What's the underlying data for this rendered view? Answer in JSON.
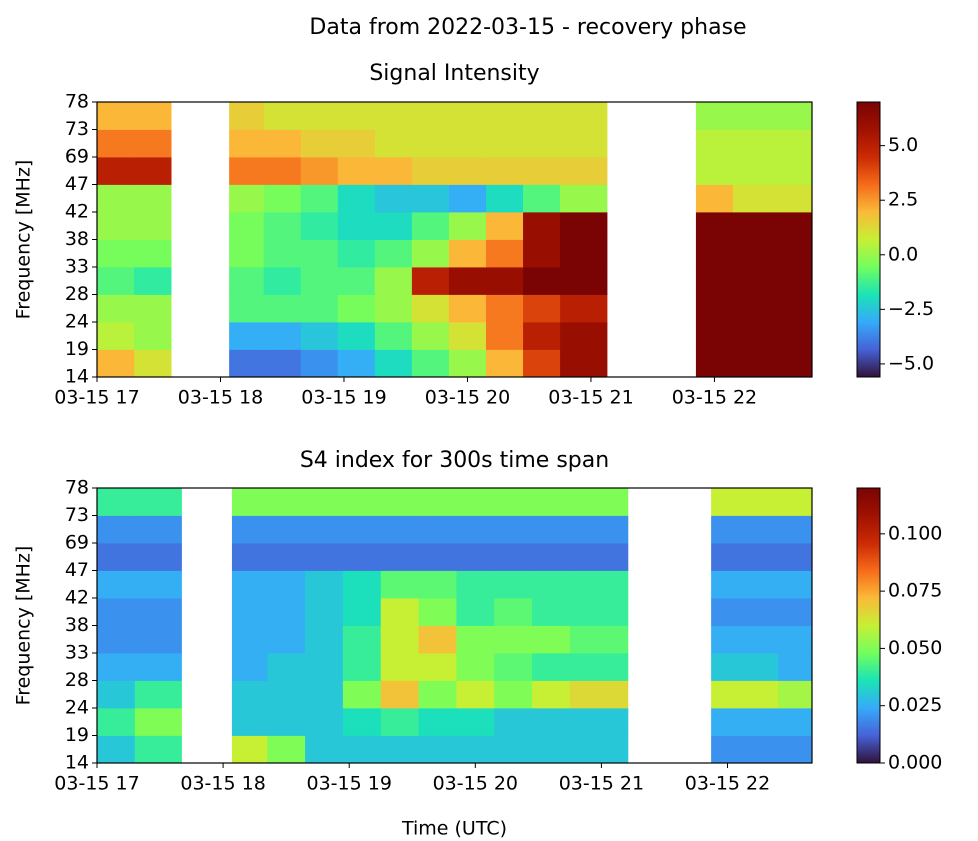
{
  "title": "Data from 2022-03-15 - recovery phase",
  "chart_data": [
    {
      "type": "heatmap",
      "title": "Signal Intensity",
      "y_label": "Frequency [MHz]",
      "x_edges": [
        17,
        17.3,
        17.6,
        18.07,
        18.35,
        18.65,
        18.95,
        19.25,
        19.55,
        19.85,
        20.15,
        20.45,
        20.75,
        21.13,
        21.85,
        22.15,
        22.45,
        22.79
      ],
      "y_edges": [
        14,
        19,
        24,
        28,
        33,
        38,
        42,
        47,
        69,
        73,
        78
      ],
      "values": [
        [
          2,
          1,
          null,
          -4,
          -4,
          -3.5,
          -3,
          -2,
          -1,
          0,
          2,
          4,
          6,
          null,
          7,
          7,
          7
        ],
        [
          0.5,
          0,
          null,
          -3,
          -3,
          -2.5,
          -2,
          -1,
          0,
          1,
          3,
          5,
          6,
          null,
          7,
          7,
          7
        ],
        [
          0,
          0,
          null,
          -1,
          -1,
          -1,
          -0.5,
          0,
          1,
          2,
          3,
          4,
          5,
          null,
          7,
          7,
          7
        ],
        [
          -1,
          -1.5,
          null,
          -1,
          -1.5,
          -1,
          -1,
          0,
          5,
          6,
          6,
          7,
          7,
          null,
          7,
          7,
          7
        ],
        [
          -0.5,
          -0.5,
          null,
          -0.5,
          -1,
          -1,
          -1.5,
          -1,
          0,
          2,
          3,
          6,
          7,
          null,
          7,
          7,
          7
        ],
        [
          0,
          0,
          null,
          -0.5,
          -1,
          -1.5,
          -2,
          -2,
          -1,
          0,
          2,
          6,
          7,
          null,
          7,
          7,
          7
        ],
        [
          0,
          0,
          null,
          0,
          -0.5,
          -1,
          -2,
          -2.5,
          -2.5,
          -3,
          -2,
          -1,
          0,
          null,
          2,
          1,
          1
        ],
        [
          5,
          5,
          null,
          3,
          3,
          2.5,
          2,
          2,
          1.5,
          1.5,
          1.5,
          1.5,
          1.5,
          null,
          0.5,
          0.5,
          0.5
        ],
        [
          3,
          3,
          null,
          2,
          2,
          1.5,
          1.5,
          1,
          1,
          1,
          1,
          1,
          1,
          null,
          0.5,
          0.5,
          0.5
        ],
        [
          2,
          2,
          null,
          1.5,
          1,
          1,
          1,
          1,
          1,
          1,
          1,
          1,
          1,
          null,
          0,
          0,
          0
        ]
      ],
      "xlim": [
        17,
        22.79
      ],
      "xticks": [
        {
          "value": 17,
          "label": "03-15 17"
        },
        {
          "value": 18,
          "label": "03-15 18"
        },
        {
          "value": 19,
          "label": "03-15 19"
        },
        {
          "value": 20,
          "label": "03-15 20"
        },
        {
          "value": 21,
          "label": "03-15 21"
        },
        {
          "value": 22,
          "label": "03-15 22"
        }
      ],
      "colormap": "turbo",
      "clim": [
        -5.6,
        7.0
      ],
      "cticks": [
        {
          "value": -5,
          "label": "−5.0"
        },
        {
          "value": -2.5,
          "label": "−2.5"
        },
        {
          "value": 0,
          "label": "0.0"
        },
        {
          "value": 2.5,
          "label": "2.5"
        },
        {
          "value": 5,
          "label": "5.0"
        }
      ]
    },
    {
      "type": "heatmap",
      "title": "S4 index for 300s time span",
      "y_label": "Frequency [MHz]",
      "x_label": "Time (UTC)",
      "x_edges": [
        17,
        17.3,
        17.67,
        18.07,
        18.35,
        18.65,
        18.95,
        19.25,
        19.55,
        19.85,
        20.15,
        20.45,
        20.75,
        21.21,
        21.87,
        22.15,
        22.4,
        22.67
      ],
      "y_edges": [
        14,
        19,
        24,
        28,
        33,
        38,
        42,
        47,
        69,
        73,
        78
      ],
      "values": [
        [
          0.03,
          0.04,
          null,
          0.06,
          0.05,
          0.03,
          0.03,
          0.03,
          0.03,
          0.03,
          0.03,
          0.03,
          0.03,
          null,
          0.02,
          0.02,
          0.02
        ],
        [
          0.04,
          0.05,
          null,
          0.03,
          0.03,
          0.03,
          0.035,
          0.04,
          0.035,
          0.035,
          0.03,
          0.03,
          0.03,
          null,
          0.025,
          0.025,
          0.025
        ],
        [
          0.03,
          0.04,
          null,
          0.03,
          0.03,
          0.03,
          0.05,
          0.07,
          0.05,
          0.06,
          0.05,
          0.06,
          0.065,
          null,
          0.06,
          0.06,
          0.055
        ],
        [
          0.025,
          0.025,
          null,
          0.025,
          0.03,
          0.03,
          0.04,
          0.06,
          0.06,
          0.05,
          0.045,
          0.04,
          0.04,
          null,
          0.03,
          0.03,
          0.025
        ],
        [
          0.02,
          0.02,
          null,
          0.025,
          0.025,
          0.03,
          0.04,
          0.06,
          0.07,
          0.05,
          0.05,
          0.05,
          0.045,
          null,
          0.025,
          0.025,
          0.025
        ],
        [
          0.02,
          0.02,
          null,
          0.025,
          0.025,
          0.03,
          0.035,
          0.06,
          0.05,
          0.04,
          0.045,
          0.04,
          0.04,
          null,
          0.02,
          0.02,
          0.02
        ],
        [
          0.025,
          0.025,
          null,
          0.025,
          0.025,
          0.03,
          0.035,
          0.045,
          0.045,
          0.04,
          0.04,
          0.04,
          0.04,
          null,
          0.025,
          0.025,
          0.025
        ],
        [
          0.015,
          0.015,
          null,
          0.015,
          0.015,
          0.015,
          0.015,
          0.015,
          0.015,
          0.015,
          0.015,
          0.015,
          0.015,
          null,
          0.015,
          0.015,
          0.015
        ],
        [
          0.02,
          0.02,
          null,
          0.02,
          0.02,
          0.02,
          0.02,
          0.02,
          0.02,
          0.02,
          0.02,
          0.02,
          0.02,
          null,
          0.02,
          0.02,
          0.02
        ],
        [
          0.04,
          0.04,
          null,
          0.05,
          0.05,
          0.05,
          0.05,
          0.05,
          0.05,
          0.05,
          0.05,
          0.05,
          0.05,
          null,
          0.06,
          0.06,
          0.06
        ]
      ],
      "xlim": [
        17,
        22.67
      ],
      "xticks": [
        {
          "value": 17,
          "label": "03-15 17"
        },
        {
          "value": 18,
          "label": "03-15 18"
        },
        {
          "value": 19,
          "label": "03-15 19"
        },
        {
          "value": 20,
          "label": "03-15 20"
        },
        {
          "value": 21,
          "label": "03-15 21"
        },
        {
          "value": 22,
          "label": "03-15 22"
        }
      ],
      "colormap": "turbo",
      "clim": [
        0,
        0.12
      ],
      "cticks": [
        {
          "value": 0,
          "label": "0.000"
        },
        {
          "value": 0.025,
          "label": "0.025"
        },
        {
          "value": 0.05,
          "label": "0.050"
        },
        {
          "value": 0.075,
          "label": "0.075"
        },
        {
          "value": 0.1,
          "label": "0.100"
        }
      ]
    }
  ]
}
